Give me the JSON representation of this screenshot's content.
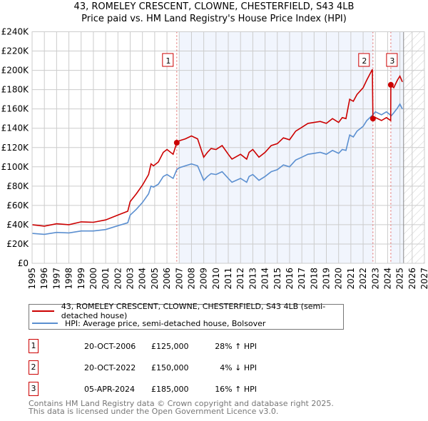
{
  "chart_data": {
    "type": "line",
    "title": "43, ROMELEY CRESCENT, CLOWNE, CHESTERFIELD, S43 4LB",
    "subtitle": "Price paid vs. HM Land Registry's House Price Index (HPI)",
    "xlim": [
      1995,
      2027
    ],
    "ylim": [
      0,
      240000
    ],
    "x_ticks": [
      "1995",
      "1996",
      "1997",
      "1998",
      "1999",
      "2000",
      "2001",
      "2002",
      "2003",
      "2004",
      "2005",
      "2006",
      "2007",
      "2008",
      "2009",
      "2010",
      "2011",
      "2012",
      "2013",
      "2014",
      "2015",
      "2016",
      "2017",
      "2018",
      "2019",
      "2020",
      "2021",
      "2022",
      "2023",
      "2024",
      "2025",
      "2026",
      "2027"
    ],
    "y_ticks": [
      {
        "v": 0,
        "label": "£0"
      },
      {
        "v": 20000,
        "label": "£20K"
      },
      {
        "v": 40000,
        "label": "£40K"
      },
      {
        "v": 60000,
        "label": "£60K"
      },
      {
        "v": 80000,
        "label": "£80K"
      },
      {
        "v": 100000,
        "label": "£100K"
      },
      {
        "v": 120000,
        "label": "£120K"
      },
      {
        "v": 140000,
        "label": "£140K"
      },
      {
        "v": 160000,
        "label": "£160K"
      },
      {
        "v": 180000,
        "label": "£180K"
      },
      {
        "v": 200000,
        "label": "£200K"
      },
      {
        "v": 220000,
        "label": "£220K"
      },
      {
        "v": 240000,
        "label": "£240K"
      }
    ],
    "grid": true,
    "shaded_periods": [
      [
        2007.0,
        2022.8
      ],
      [
        2024.26,
        2025.3
      ]
    ],
    "forecast_hatch_from": 2025.3,
    "series": [
      {
        "name": "43, ROMELEY CRESCENT, CLOWNE, CHESTERFIELD, S43 4LB (semi-detached house)",
        "color": "#cc0000",
        "x": [
          1995,
          1996,
          1997,
          1998,
          1999,
          2000,
          2001,
          2002,
          2002.8,
          2003,
          2003.5,
          2004,
          2004.5,
          2004.7,
          2004.9,
          2005.3,
          2005.7,
          2006,
          2006.5,
          2006.8,
          2007,
          2007.5,
          2008,
          2008.5,
          2009,
          2009.3,
          2009.6,
          2010,
          2010.5,
          2011,
          2011.3,
          2012,
          2012.5,
          2012.7,
          2013,
          2013.5,
          2014,
          2014.5,
          2015,
          2015.5,
          2016,
          2016.5,
          2017,
          2017.5,
          2018,
          2018.5,
          2019,
          2019.5,
          2020,
          2020.3,
          2020.6,
          2020.9,
          2021.2,
          2021.5,
          2022,
          2022.3,
          2022.75,
          2022.8,
          2023,
          2023.5,
          2023.9,
          2024.25,
          2024.26,
          2024.5,
          2024.8,
          2025,
          2025.2
        ],
        "y": [
          40000,
          38500,
          41000,
          40000,
          43000,
          42500,
          45000,
          50000,
          54000,
          64000,
          72000,
          81000,
          92000,
          103000,
          101000,
          105000,
          115000,
          118000,
          113000,
          125000,
          127000,
          129000,
          132000,
          129000,
          110000,
          115000,
          119000,
          118000,
          122000,
          113000,
          108000,
          113000,
          108000,
          115000,
          118000,
          110000,
          115000,
          122000,
          124000,
          130000,
          128000,
          137000,
          141000,
          145000,
          146000,
          147000,
          145000,
          150000,
          146000,
          151000,
          150000,
          170000,
          168000,
          175000,
          182000,
          190000,
          201000,
          150000,
          151000,
          148000,
          151000,
          148000,
          185000,
          182000,
          190000,
          194000,
          188000
        ]
      },
      {
        "name": "HPI: Average price, semi-detached house, Bolsover",
        "color": "#5b8fd0",
        "x": [
          1995,
          1996,
          1997,
          1998,
          1999,
          2000,
          2001,
          2002,
          2002.8,
          2003,
          2003.5,
          2004,
          2004.5,
          2004.7,
          2004.9,
          2005.3,
          2005.7,
          2006,
          2006.5,
          2006.8,
          2007,
          2007.5,
          2008,
          2008.5,
          2009,
          2009.3,
          2009.6,
          2010,
          2010.5,
          2011,
          2011.3,
          2012,
          2012.5,
          2012.7,
          2013,
          2013.5,
          2014,
          2014.5,
          2015,
          2015.5,
          2016,
          2016.5,
          2017,
          2017.5,
          2018,
          2018.5,
          2019,
          2019.5,
          2020,
          2020.3,
          2020.6,
          2020.9,
          2021.2,
          2021.5,
          2022,
          2022.3,
          2022.8,
          2023,
          2023.5,
          2023.9,
          2024.3,
          2024.5,
          2024.8,
          2025,
          2025.2
        ],
        "y": [
          31000,
          30000,
          32000,
          31500,
          33500,
          33500,
          35000,
          39000,
          42000,
          50000,
          56000,
          63000,
          72000,
          80000,
          79000,
          82000,
          90000,
          92000,
          88000,
          97000,
          99000,
          101000,
          103000,
          101000,
          86000,
          90000,
          93000,
          92000,
          95000,
          88000,
          84000,
          88000,
          84000,
          90000,
          92000,
          86000,
          90000,
          95000,
          97000,
          102000,
          100000,
          107000,
          110000,
          113000,
          114000,
          115000,
          113000,
          117000,
          114000,
          118000,
          117000,
          133000,
          131000,
          137000,
          142000,
          148000,
          154000,
          157000,
          154000,
          157000,
          153000,
          156000,
          161000,
          165000,
          160000
        ]
      }
    ],
    "sales": [
      {
        "num": "1",
        "x": 2006.8,
        "y": 125000,
        "date": "20-OCT-2006",
        "price": "£125,000",
        "hpi": "28% ↑ HPI"
      },
      {
        "num": "2",
        "x": 2022.8,
        "y": 150000,
        "date": "20-OCT-2022",
        "price": "£150,000",
        "hpi": "4% ↓ HPI"
      },
      {
        "num": "3",
        "x": 2024.26,
        "y": 185000,
        "date": "05-APR-2024",
        "price": "£185,000",
        "hpi": "16% ↑ HPI"
      }
    ]
  },
  "legend": {
    "property": "43, ROMELEY CRESCENT, CLOWNE, CHESTERFIELD, S43 4LB (semi-detached house)",
    "hpi": "HPI: Average price, semi-detached house, Bolsover"
  },
  "footer": {
    "line1": "Contains HM Land Registry data © Crown copyright and database right 2025.",
    "line2": "This data is licensed under the Open Government Licence v3.0."
  }
}
